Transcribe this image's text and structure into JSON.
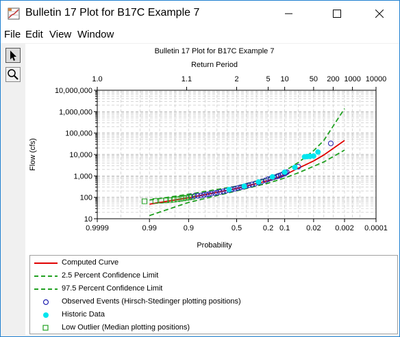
{
  "window": {
    "title": "Bulletin 17 Plot for B17C Example 7",
    "minimize_glyph": "—",
    "maximize_glyph": "☐",
    "close_glyph": "✕"
  },
  "menu": {
    "items": [
      {
        "label": "File"
      },
      {
        "label": "Edit"
      },
      {
        "label": "View"
      },
      {
        "label": "Window"
      }
    ]
  },
  "toolbar": {
    "tools": [
      {
        "name": "pointer-tool",
        "icon": "arrow-cursor-icon"
      },
      {
        "name": "zoom-tool",
        "icon": "magnifier-icon"
      }
    ]
  },
  "chart_data": {
    "type": "scatter",
    "title": "Bulletin 17 Plot for B17C Example 7",
    "top_axis_label": "Return Period",
    "top_ticks": [
      "1.0",
      "1.1",
      "2",
      "5",
      "10",
      "50",
      "200",
      "1000",
      "10000"
    ],
    "top_tick_return_periods": [
      1.0001,
      1.1,
      2,
      5,
      10,
      50,
      200,
      1000,
      10000
    ],
    "xlabel": "Probability",
    "x_ticks": [
      "0.9999",
      "0.99",
      "0.9",
      "0.5",
      "0.2",
      "0.1",
      "0.02",
      "0.002",
      "0.0001"
    ],
    "x_tick_values": [
      0.9999,
      0.99,
      0.9,
      0.5,
      0.2,
      0.1,
      0.02,
      0.002,
      0.0001
    ],
    "xlim": [
      0.9999,
      0.0001
    ],
    "x_scale": "normal-probability",
    "ylabel": "Flow (cfs)",
    "y_ticks": [
      "10",
      "100",
      "1,000",
      "10,000",
      "100,000",
      "1,000,000",
      "10,000,000"
    ],
    "y_tick_values": [
      10,
      100,
      1000,
      10000,
      100000,
      1000000,
      10000000
    ],
    "ylim": [
      10,
      10000000
    ],
    "y_scale": "log",
    "grid": true,
    "legend_position": "bottom",
    "series": [
      {
        "name": "Computed Curve",
        "kind": "line",
        "color": "#e00000",
        "points": [
          [
            0.99,
            48
          ],
          [
            0.9,
            95
          ],
          [
            0.5,
            260
          ],
          [
            0.2,
            600
          ],
          [
            0.1,
            1100
          ],
          [
            0.05,
            2300
          ],
          [
            0.02,
            5000
          ],
          [
            0.01,
            9500
          ],
          [
            0.002,
            45000
          ]
        ]
      },
      {
        "name": "2.5 Percent Confidence Limit",
        "kind": "dashed-line",
        "color": "#20a020",
        "points": [
          [
            0.99,
            75
          ],
          [
            0.9,
            140
          ],
          [
            0.5,
            330
          ],
          [
            0.2,
            800
          ],
          [
            0.1,
            1700
          ],
          [
            0.05,
            4200
          ],
          [
            0.02,
            15000
          ],
          [
            0.01,
            45000
          ],
          [
            0.002,
            1400000
          ]
        ]
      },
      {
        "name": "97.5 Percent Confidence Limit",
        "kind": "dashed-line",
        "color": "#20a020",
        "points": [
          [
            0.99,
            14
          ],
          [
            0.9,
            58
          ],
          [
            0.5,
            200
          ],
          [
            0.2,
            460
          ],
          [
            0.1,
            800
          ],
          [
            0.05,
            1400
          ],
          [
            0.02,
            2800
          ],
          [
            0.01,
            4500
          ],
          [
            0.002,
            16000
          ]
        ]
      },
      {
        "name": "Observed Events (Hirsch-Stedinger plotting positions)",
        "kind": "marker-circle-open",
        "color": "#2020b0",
        "points": [
          [
            0.89,
            110
          ],
          [
            0.87,
            115
          ],
          [
            0.85,
            118
          ],
          [
            0.83,
            122
          ],
          [
            0.81,
            128
          ],
          [
            0.79,
            135
          ],
          [
            0.77,
            140
          ],
          [
            0.75,
            148
          ],
          [
            0.72,
            158
          ],
          [
            0.7,
            165
          ],
          [
            0.67,
            178
          ],
          [
            0.64,
            190
          ],
          [
            0.61,
            205
          ],
          [
            0.58,
            220
          ],
          [
            0.55,
            235
          ],
          [
            0.52,
            250
          ],
          [
            0.49,
            270
          ],
          [
            0.46,
            290
          ],
          [
            0.43,
            310
          ],
          [
            0.4,
            340
          ],
          [
            0.37,
            370
          ],
          [
            0.34,
            400
          ],
          [
            0.31,
            440
          ],
          [
            0.28,
            490
          ],
          [
            0.25,
            550
          ],
          [
            0.22,
            620
          ],
          [
            0.2,
            700
          ],
          [
            0.18,
            780
          ],
          [
            0.16,
            860
          ],
          [
            0.14,
            950
          ],
          [
            0.13,
            1000
          ],
          [
            0.12,
            1080
          ],
          [
            0.11,
            1180
          ],
          [
            0.1,
            1300
          ],
          [
            0.095,
            1400
          ],
          [
            0.09,
            1500
          ],
          [
            0.05,
            2700
          ],
          [
            0.006,
            33000
          ]
        ]
      },
      {
        "name": "Historic Data",
        "kind": "marker-circle-filled",
        "color": "#00e5ee",
        "points": [
          [
            0.58,
            230
          ],
          [
            0.42,
            330
          ],
          [
            0.28,
            520
          ],
          [
            0.17,
            900
          ],
          [
            0.1,
            1500
          ],
          [
            0.06,
            2500
          ],
          [
            0.035,
            7800
          ],
          [
            0.03,
            8000
          ],
          [
            0.025,
            8200
          ],
          [
            0.02,
            8500
          ],
          [
            0.015,
            13000
          ]
        ]
      },
      {
        "name": "Low Outlier (Median plotting positions)",
        "kind": "marker-square-open",
        "color": "#20a020",
        "points": [
          [
            0.993,
            65
          ],
          [
            0.985,
            68
          ],
          [
            0.978,
            70
          ],
          [
            0.97,
            72
          ],
          [
            0.962,
            75
          ],
          [
            0.953,
            78
          ],
          [
            0.943,
            82
          ],
          [
            0.933,
            86
          ],
          [
            0.922,
            90
          ],
          [
            0.91,
            95
          ],
          [
            0.897,
            100
          ],
          [
            0.883,
            105
          ]
        ]
      }
    ]
  },
  "legend": {
    "items": [
      {
        "label": "Computed Curve",
        "symbol": "line",
        "color": "#e00000"
      },
      {
        "label": "2.5 Percent Confidence Limit",
        "symbol": "dashed-line",
        "color": "#20a020"
      },
      {
        "label": "97.5 Percent Confidence Limit",
        "symbol": "dashed-line",
        "color": "#20a020"
      },
      {
        "label": "Observed Events (Hirsch-Stedinger plotting positions)",
        "symbol": "circle-open",
        "color": "#2020b0"
      },
      {
        "label": "Historic Data",
        "symbol": "circle-filled",
        "color": "#00e5ee"
      },
      {
        "label": "Low Outlier (Median plotting positions)",
        "symbol": "square-open",
        "color": "#20a020"
      }
    ]
  }
}
